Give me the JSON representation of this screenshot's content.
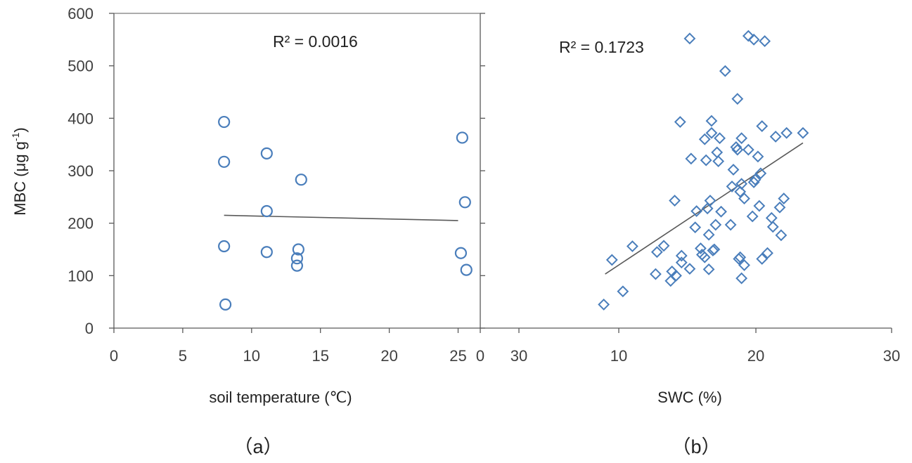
{
  "colors": {
    "marker": "#4a7ebb",
    "trend": "#595959",
    "axis": "#595959"
  },
  "y_axis": {
    "label_main": "MBC (μg g",
    "label_sup": "-1",
    "label_end": ")",
    "ticks": [
      "0",
      "100",
      "200",
      "300",
      "400",
      "500",
      "600"
    ]
  },
  "chart_data": [
    {
      "type": "scatter",
      "caption": "（a）",
      "xlabel": "soil temperature (℃)",
      "ylabel": "MBC (μg g-1)",
      "x_ticks": [
        "0",
        "5",
        "10",
        "15",
        "20",
        "25"
      ],
      "xlim": [
        0,
        26.5
      ],
      "ylim": [
        0,
        600
      ],
      "marker": "circle",
      "r2_label": "R² = 0.0016",
      "trendline": {
        "x": [
          8,
          25
        ],
        "y": [
          215,
          205
        ]
      },
      "points": [
        [
          8.0,
          393
        ],
        [
          8.0,
          317
        ],
        [
          8.0,
          156
        ],
        [
          8.1,
          45
        ],
        [
          11.1,
          333
        ],
        [
          11.1,
          223
        ],
        [
          11.1,
          145
        ],
        [
          13.4,
          150
        ],
        [
          13.3,
          133
        ],
        [
          13.3,
          119
        ],
        [
          13.6,
          283
        ],
        [
          25.3,
          363
        ],
        [
          25.5,
          240
        ],
        [
          25.2,
          143
        ],
        [
          25.6,
          111
        ]
      ]
    },
    {
      "type": "scatter",
      "caption": "（b）",
      "xlabel": "SWC (%)",
      "ylabel": "",
      "x_ticks": [
        "0",
        "30",
        "10",
        "20",
        "30"
      ],
      "xlim": [
        0,
        30
      ],
      "ylim": [
        0,
        600
      ],
      "marker": "diamond",
      "r2_label": "R² = 0.1723",
      "trendline": {
        "x": [
          9,
          23.5
        ],
        "y": [
          103,
          353
        ]
      },
      "points": [
        [
          8.9,
          45
        ],
        [
          9.5,
          130
        ],
        [
          10.3,
          70
        ],
        [
          11.0,
          156
        ],
        [
          12.7,
          103
        ],
        [
          12.8,
          145
        ],
        [
          13.3,
          157
        ],
        [
          13.8,
          90
        ],
        [
          13.9,
          108
        ],
        [
          14.2,
          100
        ],
        [
          14.1,
          243
        ],
        [
          14.5,
          393
        ],
        [
          14.6,
          138
        ],
        [
          14.6,
          125
        ],
        [
          15.2,
          113
        ],
        [
          15.3,
          323
        ],
        [
          15.2,
          552
        ],
        [
          15.6,
          192
        ],
        [
          15.7,
          223
        ],
        [
          16.0,
          152
        ],
        [
          16.1,
          140
        ],
        [
          16.3,
          135
        ],
        [
          16.3,
          360
        ],
        [
          16.4,
          320
        ],
        [
          16.5,
          228
        ],
        [
          16.6,
          178
        ],
        [
          16.6,
          112
        ],
        [
          16.7,
          243
        ],
        [
          16.8,
          395
        ],
        [
          16.8,
          372
        ],
        [
          16.9,
          148
        ],
        [
          17.0,
          150
        ],
        [
          17.1,
          197
        ],
        [
          17.2,
          335
        ],
        [
          17.3,
          318
        ],
        [
          17.4,
          362
        ],
        [
          17.5,
          222
        ],
        [
          17.8,
          490
        ],
        [
          18.2,
          197
        ],
        [
          18.3,
          270
        ],
        [
          18.4,
          302
        ],
        [
          18.6,
          345
        ],
        [
          18.7,
          437
        ],
        [
          18.7,
          340
        ],
        [
          18.8,
          132
        ],
        [
          18.9,
          260
        ],
        [
          19.0,
          275
        ],
        [
          19.0,
          362
        ],
        [
          18.9,
          135
        ],
        [
          19.0,
          95
        ],
        [
          19.2,
          120
        ],
        [
          19.2,
          247
        ],
        [
          19.5,
          340
        ],
        [
          19.5,
          557
        ],
        [
          19.8,
          213
        ],
        [
          19.9,
          550
        ],
        [
          19.9,
          278
        ],
        [
          20.0,
          283
        ],
        [
          20.2,
          327
        ],
        [
          20.3,
          233
        ],
        [
          20.4,
          295
        ],
        [
          20.5,
          385
        ],
        [
          20.5,
          132
        ],
        [
          20.7,
          547
        ],
        [
          20.9,
          143
        ],
        [
          21.2,
          210
        ],
        [
          21.3,
          193
        ],
        [
          21.5,
          365
        ],
        [
          21.8,
          230
        ],
        [
          21.9,
          177
        ],
        [
          22.1,
          247
        ],
        [
          22.3,
          372
        ],
        [
          23.5,
          372
        ]
      ]
    }
  ]
}
